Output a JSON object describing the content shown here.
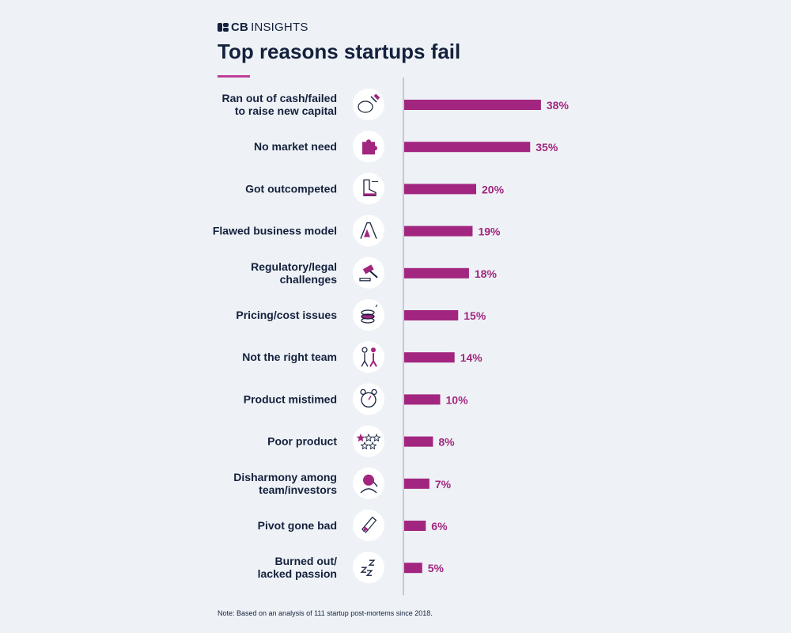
{
  "brand": {
    "logo_text": "CBINSIGHTS",
    "logo_bold": "CB",
    "logo_light": "INSIGHTS"
  },
  "title": "Top reasons startups fail",
  "note": "Note: Based on an analysis of 111 startup post-mortems since 2018.",
  "colors": {
    "bar": "#a2267f",
    "text": "#14213d",
    "accent": "#c13c9b",
    "background": "#eef2f6"
  },
  "chart_data": {
    "type": "bar",
    "orientation": "horizontal",
    "value_suffix": "%",
    "xlim": [
      0,
      40
    ],
    "grid": false,
    "categories": [
      {
        "label": [
          "Ran out of cash/failed",
          "to raise new capital"
        ],
        "value": 38,
        "icon": "piggy-bank-hammer-icon"
      },
      {
        "label": [
          "No market need"
        ],
        "value": 35,
        "icon": "puzzle-piece-icon"
      },
      {
        "label": [
          "Got outcompeted"
        ],
        "value": 20,
        "icon": "sneaker-icon"
      },
      {
        "label": [
          "Flawed business model"
        ],
        "value": 19,
        "icon": "house-of-cards-icon"
      },
      {
        "label": [
          "Regulatory/legal",
          "challenges"
        ],
        "value": 18,
        "icon": "gavel-icon"
      },
      {
        "label": [
          "Pricing/cost issues"
        ],
        "value": 15,
        "icon": "coin-stack-icon"
      },
      {
        "label": [
          "Not the right team"
        ],
        "value": 14,
        "icon": "team-people-icon"
      },
      {
        "label": [
          "Product mistimed"
        ],
        "value": 10,
        "icon": "alarm-clock-icon"
      },
      {
        "label": [
          "Poor product"
        ],
        "value": 8,
        "icon": "star-rating-icon"
      },
      {
        "label": [
          "Disharmony among",
          "team/investors"
        ],
        "value": 7,
        "icon": "frustrated-person-icon"
      },
      {
        "label": [
          "Pivot gone bad"
        ],
        "value": 6,
        "icon": "pencil-icon"
      },
      {
        "label": [
          "Burned out/",
          "lacked passion"
        ],
        "value": 5,
        "icon": "sleeping-zzz-icon"
      }
    ]
  }
}
